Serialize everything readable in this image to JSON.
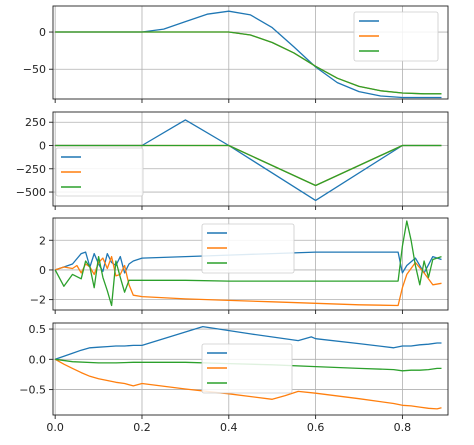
{
  "chart_data": [
    {
      "type": "line",
      "ylim": [
        -90,
        35
      ],
      "xlim": [
        -0.005,
        0.905
      ],
      "yticks": [
        0,
        -50
      ],
      "ytick_labels": [
        "0",
        "−50"
      ],
      "xticks": [
        0.0,
        0.2,
        0.4,
        0.6,
        0.8
      ],
      "xtick_labels": [],
      "grid": true,
      "legend_position": "upper-right",
      "series": [
        {
          "color": "#1f77b4",
          "x": [
            0.0,
            0.2,
            0.25,
            0.3,
            0.35,
            0.4,
            0.45,
            0.5,
            0.55,
            0.6,
            0.65,
            0.7,
            0.75,
            0.8,
            0.85,
            0.89
          ],
          "y": [
            0,
            0,
            4,
            14,
            24,
            28,
            23,
            6,
            -20,
            -47,
            -68,
            -80,
            -86,
            -88,
            -88,
            -88
          ]
        },
        {
          "color": "#ff7f0e",
          "x": [
            0.0,
            0.4,
            0.45,
            0.5,
            0.55,
            0.6,
            0.65,
            0.7,
            0.75,
            0.8,
            0.85,
            0.89
          ],
          "y": [
            0,
            0,
            -4,
            -14,
            -28,
            -46,
            -62,
            -73,
            -79,
            -82,
            -83,
            -83
          ]
        },
        {
          "color": "#2ca02c",
          "x": [
            0.0,
            0.4,
            0.45,
            0.5,
            0.55,
            0.6,
            0.65,
            0.7,
            0.75,
            0.8,
            0.85,
            0.89
          ],
          "y": [
            0,
            0,
            -4,
            -14,
            -28,
            -46,
            -62,
            -73,
            -79,
            -82,
            -83,
            -83
          ]
        }
      ]
    },
    {
      "type": "line",
      "ylim": [
        -650,
        360
      ],
      "xlim": [
        -0.005,
        0.905
      ],
      "yticks": [
        250,
        0,
        -250,
        -500
      ],
      "ytick_labels": [
        "250",
        "0",
        "−250",
        "−500"
      ],
      "xticks": [
        0.0,
        0.2,
        0.4,
        0.6,
        0.8
      ],
      "xtick_labels": [],
      "grid": true,
      "legend_position": "center-left",
      "series": [
        {
          "color": "#1f77b4",
          "x": [
            0.0,
            0.2,
            0.3,
            0.4,
            0.6,
            0.8,
            0.89
          ],
          "y": [
            0,
            0,
            275,
            0,
            -590,
            0,
            0
          ]
        },
        {
          "color": "#ff7f0e",
          "x": [
            0.0,
            0.4,
            0.6,
            0.8,
            0.89
          ],
          "y": [
            0,
            0,
            -430,
            0,
            0
          ]
        },
        {
          "color": "#2ca02c",
          "x": [
            0.0,
            0.4,
            0.6,
            0.8,
            0.89
          ],
          "y": [
            0,
            0,
            -430,
            0,
            0
          ]
        }
      ]
    },
    {
      "type": "line",
      "ylim": [
        -2.7,
        3.5
      ],
      "xlim": [
        -0.005,
        0.905
      ],
      "yticks": [
        2,
        0,
        -2
      ],
      "ytick_labels": [
        "2",
        "0",
        "−2"
      ],
      "xticks": [
        0.0,
        0.2,
        0.4,
        0.6,
        0.8
      ],
      "xtick_labels": [],
      "grid": true,
      "legend_position": "upper-center",
      "series": [
        {
          "color": "#1f77b4",
          "x": [
            0.0,
            0.02,
            0.04,
            0.06,
            0.07,
            0.08,
            0.09,
            0.1,
            0.11,
            0.12,
            0.13,
            0.14,
            0.15,
            0.16,
            0.17,
            0.18,
            0.2,
            0.3,
            0.4,
            0.5,
            0.6,
            0.7,
            0.79,
            0.8,
            0.81,
            0.83,
            0.85,
            0.87,
            0.89
          ],
          "y": [
            0,
            0.2,
            0.4,
            1.1,
            1.2,
            0.2,
            1.1,
            0.4,
            -0.1,
            1.1,
            0.5,
            0.3,
            0.9,
            -0.2,
            0.4,
            0.6,
            0.8,
            0.9,
            1.0,
            1.1,
            1.2,
            1.2,
            1.2,
            -0.2,
            0.3,
            0.8,
            -0.2,
            0.9,
            0.7
          ]
        },
        {
          "color": "#ff7f0e",
          "x": [
            0.0,
            0.02,
            0.04,
            0.05,
            0.06,
            0.07,
            0.08,
            0.09,
            0.1,
            0.11,
            0.12,
            0.13,
            0.14,
            0.15,
            0.16,
            0.17,
            0.18,
            0.2,
            0.3,
            0.4,
            0.5,
            0.6,
            0.7,
            0.79,
            0.8,
            0.81,
            0.83,
            0.85,
            0.87,
            0.89
          ],
          "y": [
            0,
            0.2,
            0.1,
            0.3,
            -0.2,
            0.4,
            0.2,
            -0.3,
            0.5,
            0.8,
            0.1,
            0.9,
            -0.4,
            -0.3,
            0.3,
            -1.0,
            -1.7,
            -1.8,
            -1.95,
            -2.05,
            -2.15,
            -2.25,
            -2.35,
            -2.4,
            -1.2,
            -0.3,
            0.5,
            -0.2,
            -1.0,
            -0.9
          ]
        },
        {
          "color": "#2ca02c",
          "x": [
            0.0,
            0.02,
            0.04,
            0.06,
            0.07,
            0.08,
            0.09,
            0.1,
            0.11,
            0.12,
            0.13,
            0.14,
            0.15,
            0.16,
            0.17,
            0.2,
            0.3,
            0.4,
            0.5,
            0.6,
            0.7,
            0.79,
            0.8,
            0.81,
            0.82,
            0.83,
            0.84,
            0.85,
            0.86,
            0.87,
            0.89
          ],
          "y": [
            0,
            -1.1,
            -0.3,
            -0.6,
            0.6,
            0.2,
            -1.2,
            0.9,
            -0.5,
            -1.4,
            -2.4,
            0.6,
            -0.5,
            -1.5,
            -0.7,
            -0.7,
            -0.7,
            -0.75,
            -0.75,
            -0.75,
            -0.75,
            -0.75,
            1.6,
            3.3,
            2.0,
            0.3,
            -1.0,
            0.6,
            -0.5,
            0.7,
            0.9
          ]
        }
      ]
    },
    {
      "type": "line",
      "ylim": [
        -0.92,
        0.6
      ],
      "xlim": [
        -0.005,
        0.905
      ],
      "yticks": [
        0.5,
        0.0,
        -0.5
      ],
      "ytick_labels": [
        "0.5",
        "0.0",
        "−0.5"
      ],
      "xticks": [
        0.0,
        0.2,
        0.4,
        0.6,
        0.8
      ],
      "xtick_labels": [
        "0.0",
        "0.2",
        "0.4",
        "0.6",
        "0.8"
      ],
      "grid": true,
      "legend_position": "center",
      "series": [
        {
          "color": "#1f77b4",
          "x": [
            0.0,
            0.02,
            0.04,
            0.06,
            0.08,
            0.1,
            0.12,
            0.14,
            0.16,
            0.18,
            0.2,
            0.34,
            0.45,
            0.56,
            0.59,
            0.6,
            0.7,
            0.78,
            0.8,
            0.82,
            0.84,
            0.86,
            0.88,
            0.89
          ],
          "y": [
            0,
            0.05,
            0.1,
            0.15,
            0.19,
            0.2,
            0.21,
            0.22,
            0.22,
            0.23,
            0.23,
            0.54,
            0.42,
            0.31,
            0.37,
            0.34,
            0.26,
            0.19,
            0.22,
            0.22,
            0.24,
            0.25,
            0.27,
            0.27
          ]
        },
        {
          "color": "#ff7f0e",
          "x": [
            0.0,
            0.02,
            0.04,
            0.06,
            0.08,
            0.1,
            0.12,
            0.14,
            0.16,
            0.18,
            0.2,
            0.3,
            0.4,
            0.5,
            0.53,
            0.56,
            0.6,
            0.7,
            0.78,
            0.8,
            0.82,
            0.84,
            0.86,
            0.88,
            0.89
          ],
          "y": [
            0,
            -0.08,
            -0.15,
            -0.22,
            -0.28,
            -0.32,
            -0.35,
            -0.38,
            -0.4,
            -0.44,
            -0.4,
            -0.49,
            -0.57,
            -0.66,
            -0.6,
            -0.53,
            -0.56,
            -0.65,
            -0.73,
            -0.76,
            -0.77,
            -0.79,
            -0.81,
            -0.82,
            -0.8
          ]
        },
        {
          "color": "#2ca02c",
          "x": [
            0.0,
            0.04,
            0.1,
            0.12,
            0.14,
            0.18,
            0.2,
            0.3,
            0.4,
            0.5,
            0.6,
            0.7,
            0.78,
            0.8,
            0.82,
            0.84,
            0.86,
            0.88,
            0.89
          ],
          "y": [
            0,
            -0.04,
            -0.06,
            -0.06,
            -0.06,
            -0.05,
            -0.05,
            -0.05,
            -0.07,
            -0.09,
            -0.12,
            -0.15,
            -0.17,
            -0.19,
            -0.18,
            -0.18,
            -0.17,
            -0.15,
            -0.15
          ]
        }
      ]
    }
  ]
}
